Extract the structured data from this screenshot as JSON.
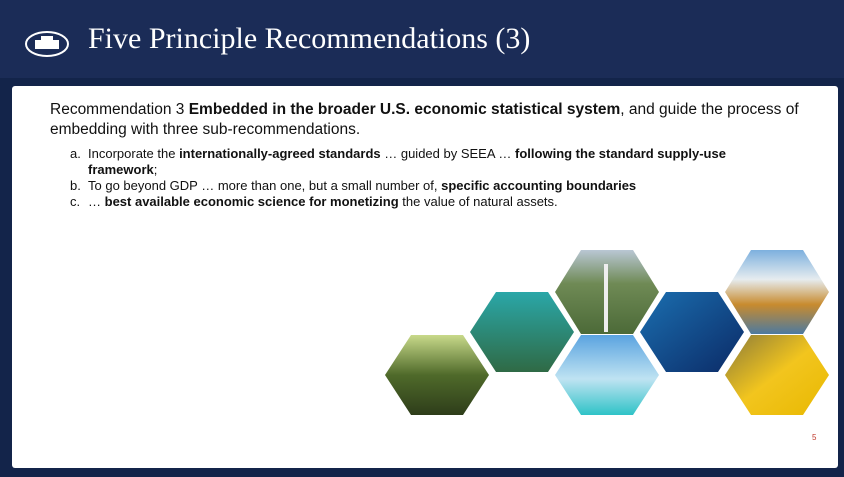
{
  "header": {
    "title": "Five Principle Recommendations (3)"
  },
  "body": {
    "intro": [
      {
        "text": "Recommendation 3 ",
        "bold": false
      },
      {
        "text": "Embedded in the broader U.S. economic statistical system",
        "bold": true
      },
      {
        "text": ", and guide the process of embedding with three sub-recommendations.",
        "bold": false
      }
    ],
    "items": [
      {
        "marker": "a.",
        "runs": [
          {
            "text": "Incorporate the ",
            "bold": false
          },
          {
            "text": "internationally-agreed standards",
            "bold": true
          },
          {
            "text": " … guided by SEEA … ",
            "bold": false
          },
          {
            "text": "following the standard supply-use framework",
            "bold": true
          },
          {
            "text": ";",
            "bold": false
          }
        ]
      },
      {
        "marker": "b.",
        "runs": [
          {
            "text": "To go beyond GDP … more than one, but a small number of, ",
            "bold": false
          },
          {
            "text": "specific accounting boundaries",
            "bold": true
          }
        ]
      },
      {
        "marker": "c.",
        "runs": [
          {
            "text": "… ",
            "bold": false
          },
          {
            "text": "best available economic science for monetizing",
            "bold": true
          },
          {
            "text": " the value of natural assets.",
            "bold": false
          }
        ]
      }
    ]
  },
  "footer": {
    "page_number": "5"
  }
}
